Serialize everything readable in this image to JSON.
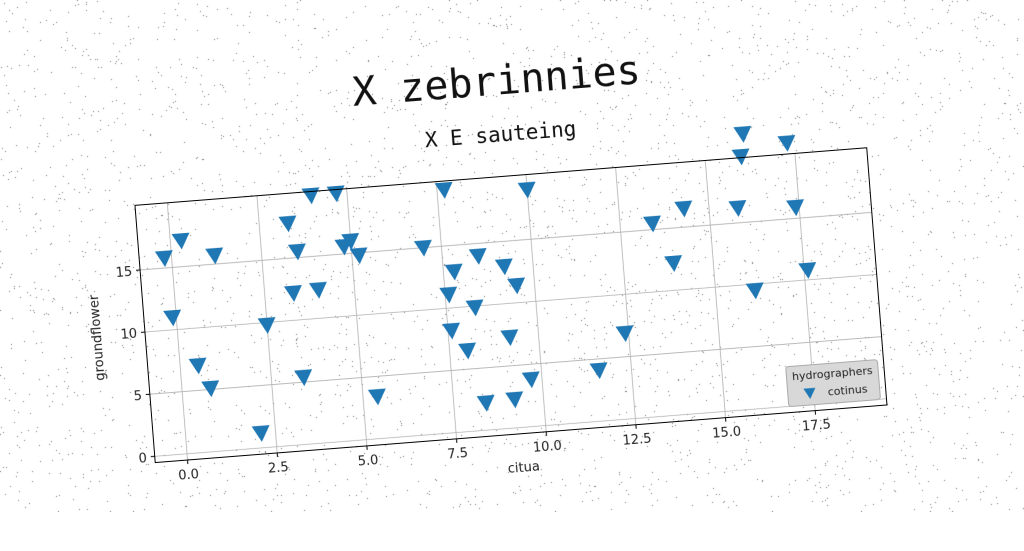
{
  "chart_data": {
    "type": "scatter",
    "title": "X zebrinnies",
    "subtitle": "X E sauteing",
    "xlabel": "citua",
    "ylabel": "groundflower",
    "xlim": [
      -0.9,
      19.5
    ],
    "ylim": [
      -0.5,
      20.2
    ],
    "xticks": [
      "0.0",
      "2.5",
      "5.0",
      "7.5",
      "10.0",
      "12.5",
      "15.0",
      "17.5"
    ],
    "yticks": [
      "0",
      "5",
      "10",
      "15"
    ],
    "grid": true,
    "marker": "triangle-down",
    "color": "#1f77b4",
    "legend": {
      "title": "hydrographers",
      "placement": "lower-right",
      "entries": [
        "cotinus"
      ]
    },
    "series": [
      {
        "name": "cotinus",
        "points": [
          [
            -0.2,
            15.8
          ],
          [
            0.3,
            17.1
          ],
          [
            1.2,
            15.7
          ],
          [
            -0.1,
            11.0
          ],
          [
            0.5,
            7.0
          ],
          [
            0.8,
            5.1
          ],
          [
            2.1,
            1.2
          ],
          [
            2.5,
            9.8
          ],
          [
            3.3,
            17.8
          ],
          [
            3.5,
            15.5
          ],
          [
            3.3,
            12.2
          ],
          [
            4.0,
            12.3
          ],
          [
            3.4,
            5.4
          ],
          [
            4.0,
            19.9
          ],
          [
            4.7,
            19.9
          ],
          [
            4.8,
            15.6
          ],
          [
            5.0,
            16.0
          ],
          [
            5.2,
            14.8
          ],
          [
            5.4,
            3.4
          ],
          [
            7.0,
            15.0
          ],
          [
            7.6,
            11.1
          ],
          [
            7.6,
            8.2
          ],
          [
            7.8,
            12.9
          ],
          [
            7.7,
            19.5
          ],
          [
            8.0,
            6.5
          ],
          [
            8.3,
            9.9
          ],
          [
            8.5,
            14.0
          ],
          [
            8.4,
            2.2
          ],
          [
            9.2,
            2.3
          ],
          [
            9.2,
            7.3
          ],
          [
            9.2,
            13.0
          ],
          [
            9.5,
            11.4
          ],
          [
            9.7,
            3.8
          ],
          [
            10.0,
            19.0
          ],
          [
            11.6,
            4.1
          ],
          [
            12.4,
            6.9
          ],
          [
            13.4,
            15.5
          ],
          [
            13.9,
            12.2
          ],
          [
            14.3,
            16.5
          ],
          [
            15.8,
            16.2
          ],
          [
            16.1,
            9.5
          ],
          [
            16.0,
            20.3
          ],
          [
            16.1,
            22.1
          ],
          [
            17.3,
            21.1
          ],
          [
            17.4,
            15.9
          ],
          [
            17.6,
            10.8
          ]
        ]
      }
    ]
  }
}
